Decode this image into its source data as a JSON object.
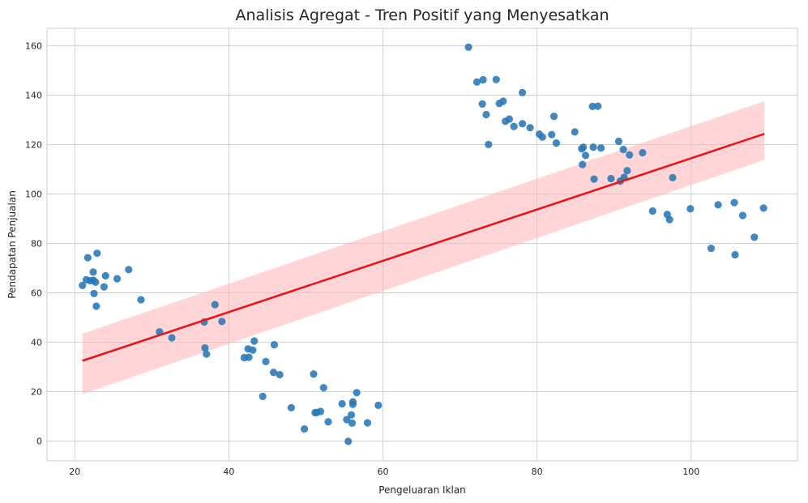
{
  "chart_data": {
    "type": "scatter",
    "title": "Analisis Agregat - Tren Positif yang Menyesatkan",
    "xlabel": "Pengeluaran Iklan",
    "ylabel": "Pendapatan Penjualan",
    "xlim": [
      16.4,
      113.8
    ],
    "ylim": [
      -8,
      167
    ],
    "xticks": [
      20,
      40,
      60,
      80,
      100
    ],
    "yticks": [
      0,
      20,
      40,
      60,
      80,
      100,
      120,
      140,
      160
    ],
    "grid": true,
    "colors": {
      "points": "#2878b5",
      "regression": "#e8161b",
      "band": "#ffb3b3"
    },
    "regression": {
      "x": [
        21.0,
        109.5
      ],
      "y": [
        32.5,
        124.3
      ],
      "ci_lower": [
        19.0,
        113.8
      ],
      "ci_upper": [
        43.5,
        137.5
      ]
    },
    "points": [
      [
        21.0,
        63.0
      ],
      [
        21.5,
        65.3
      ],
      [
        21.7,
        74.2
      ],
      [
        22.0,
        64.9
      ],
      [
        22.4,
        68.4
      ],
      [
        22.4,
        65.1
      ],
      [
        22.5,
        59.7
      ],
      [
        22.7,
        64.3
      ],
      [
        22.8,
        54.6
      ],
      [
        22.9,
        76.0
      ],
      [
        23.8,
        62.4
      ],
      [
        24.0,
        66.9
      ],
      [
        25.5,
        65.7
      ],
      [
        27.0,
        69.4
      ],
      [
        28.6,
        57.2
      ],
      [
        31.0,
        44.2
      ],
      [
        32.6,
        41.8
      ],
      [
        36.8,
        48.2
      ],
      [
        36.9,
        37.7
      ],
      [
        37.1,
        35.2
      ],
      [
        38.2,
        55.2
      ],
      [
        39.1,
        48.4
      ],
      [
        42.0,
        33.8
      ],
      [
        42.5,
        37.3
      ],
      [
        42.6,
        33.9
      ],
      [
        43.1,
        36.8
      ],
      [
        43.3,
        40.5
      ],
      [
        44.4,
        18.1
      ],
      [
        44.8,
        32.2
      ],
      [
        45.8,
        27.8
      ],
      [
        45.9,
        39.0
      ],
      [
        46.6,
        26.9
      ],
      [
        48.1,
        13.5
      ],
      [
        49.8,
        4.9
      ],
      [
        51.0,
        27.1
      ],
      [
        51.2,
        11.5
      ],
      [
        51.4,
        11.6
      ],
      [
        51.9,
        12.0
      ],
      [
        52.3,
        21.6
      ],
      [
        52.9,
        7.8
      ],
      [
        54.7,
        15.1
      ],
      [
        55.3,
        8.7
      ],
      [
        55.5,
        -0.1
      ],
      [
        55.9,
        10.6
      ],
      [
        56.0,
        7.3
      ],
      [
        56.1,
        14.9
      ],
      [
        56.1,
        15.9
      ],
      [
        56.6,
        19.6
      ],
      [
        58.0,
        7.4
      ],
      [
        59.4,
        14.5
      ],
      [
        71.1,
        159.4
      ],
      [
        72.2,
        145.3
      ],
      [
        72.9,
        136.4
      ],
      [
        73.0,
        146.2
      ],
      [
        73.4,
        132.1
      ],
      [
        73.7,
        120.0
      ],
      [
        74.7,
        146.3
      ],
      [
        75.1,
        136.6
      ],
      [
        75.6,
        137.5
      ],
      [
        75.9,
        129.4
      ],
      [
        76.4,
        130.3
      ],
      [
        77.0,
        127.3
      ],
      [
        78.1,
        141.0
      ],
      [
        78.1,
        128.4
      ],
      [
        79.1,
        126.8
      ],
      [
        80.3,
        124.2
      ],
      [
        80.7,
        123.0
      ],
      [
        81.9,
        124.0
      ],
      [
        82.2,
        131.4
      ],
      [
        82.5,
        120.6
      ],
      [
        84.9,
        125.1
      ],
      [
        85.8,
        118.3
      ],
      [
        85.9,
        111.9
      ],
      [
        86.0,
        118.9
      ],
      [
        86.3,
        115.6
      ],
      [
        87.2,
        135.4
      ],
      [
        87.3,
        118.9
      ],
      [
        87.4,
        106.0
      ],
      [
        87.9,
        135.5
      ],
      [
        88.3,
        118.6
      ],
      [
        89.6,
        106.2
      ],
      [
        90.6,
        121.3
      ],
      [
        90.8,
        105.2
      ],
      [
        91.2,
        118.0
      ],
      [
        91.3,
        106.7
      ],
      [
        91.7,
        109.4
      ],
      [
        92.0,
        115.8
      ],
      [
        93.7,
        116.7
      ],
      [
        95.0,
        93.1
      ],
      [
        96.9,
        91.7
      ],
      [
        97.2,
        89.6
      ],
      [
        97.6,
        106.6
      ],
      [
        99.9,
        94.0
      ],
      [
        102.6,
        78.0
      ],
      [
        103.5,
        95.6
      ],
      [
        105.6,
        96.5
      ],
      [
        105.7,
        75.4
      ],
      [
        106.7,
        91.3
      ],
      [
        108.2,
        82.5
      ],
      [
        109.4,
        94.3
      ]
    ]
  }
}
